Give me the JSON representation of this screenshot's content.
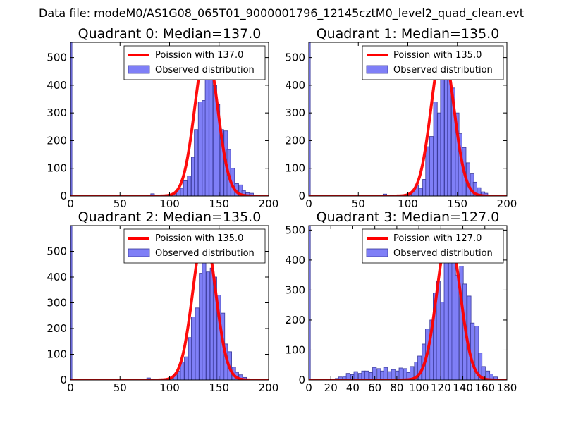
{
  "figure": {
    "suptitle": "Data file: modeM0/AS1G08_065T01_9000001796_12145cztM0_level2_quad_clean.evt",
    "bar_fill": "#7f7ff7",
    "bar_edge": "#3a3a9a",
    "curve_color": "#ff0000"
  },
  "chart_data": [
    {
      "type": "bar",
      "title": "Quadrant 0: Median=137.0",
      "median": 137.0,
      "legend": [
        "Poission with 137.0",
        "Observed distribution"
      ],
      "xlim": [
        0,
        200
      ],
      "ylim": [
        0,
        555
      ],
      "xticks": [
        0,
        50,
        100,
        150,
        200
      ],
      "yticks": [
        0,
        100,
        200,
        300,
        400,
        500
      ],
      "bin_width": 3.7,
      "zero_bin": {
        "x": 0,
        "width": 1.5,
        "value": 555
      },
      "bins": [
        {
          "x": 77,
          "value": 4
        },
        {
          "x": 81,
          "value": 8
        },
        {
          "x": 85,
          "value": 3
        },
        {
          "x": 92,
          "value": 3
        },
        {
          "x": 96,
          "value": 5
        },
        {
          "x": 100,
          "value": 5
        },
        {
          "x": 103,
          "value": 10
        },
        {
          "x": 107,
          "value": 22
        },
        {
          "x": 111,
          "value": 28
        },
        {
          "x": 114,
          "value": 55
        },
        {
          "x": 118,
          "value": 72
        },
        {
          "x": 122,
          "value": 140
        },
        {
          "x": 125,
          "value": 240
        },
        {
          "x": 129,
          "value": 340
        },
        {
          "x": 133,
          "value": 345
        },
        {
          "x": 136,
          "value": 485
        },
        {
          "x": 140,
          "value": 470
        },
        {
          "x": 144,
          "value": 400
        },
        {
          "x": 147,
          "value": 330
        },
        {
          "x": 151,
          "value": 240
        },
        {
          "x": 155,
          "value": 235
        },
        {
          "x": 158,
          "value": 168
        },
        {
          "x": 162,
          "value": 100
        },
        {
          "x": 166,
          "value": 45
        },
        {
          "x": 170,
          "value": 40
        },
        {
          "x": 173,
          "value": 20
        },
        {
          "x": 177,
          "value": 12
        },
        {
          "x": 181,
          "value": 10
        },
        {
          "x": 185,
          "value": 3
        }
      ],
      "curve": {
        "peak": 530,
        "sigma": 11.5
      }
    },
    {
      "type": "bar",
      "title": "Quadrant 1: Median=135.0",
      "median": 135.0,
      "legend": [
        "Poission with 135.0",
        "Observed distribution"
      ],
      "xlim": [
        0,
        200
      ],
      "ylim": [
        0,
        555
      ],
      "xticks": [
        0,
        50,
        100,
        150,
        200
      ],
      "yticks": [
        0,
        100,
        200,
        300,
        400,
        500
      ],
      "bin_width": 3.7,
      "zero_bin": {
        "x": 0,
        "width": 1.5,
        "value": 555
      },
      "bins": [
        {
          "x": 75,
          "value": 7
        },
        {
          "x": 82,
          "value": 3
        },
        {
          "x": 89,
          "value": 4
        },
        {
          "x": 96,
          "value": 5
        },
        {
          "x": 100,
          "value": 10
        },
        {
          "x": 104,
          "value": 18
        },
        {
          "x": 107,
          "value": 40
        },
        {
          "x": 111,
          "value": 28
        },
        {
          "x": 115,
          "value": 60
        },
        {
          "x": 118,
          "value": 178
        },
        {
          "x": 122,
          "value": 215
        },
        {
          "x": 126,
          "value": 340
        },
        {
          "x": 130,
          "value": 300
        },
        {
          "x": 133,
          "value": 440
        },
        {
          "x": 137,
          "value": 510
        },
        {
          "x": 140,
          "value": 440
        },
        {
          "x": 144,
          "value": 390
        },
        {
          "x": 148,
          "value": 300
        },
        {
          "x": 151,
          "value": 225
        },
        {
          "x": 155,
          "value": 175
        },
        {
          "x": 159,
          "value": 120
        },
        {
          "x": 163,
          "value": 80
        },
        {
          "x": 166,
          "value": 50
        },
        {
          "x": 170,
          "value": 30
        },
        {
          "x": 174,
          "value": 15
        },
        {
          "x": 177,
          "value": 10
        }
      ],
      "curve": {
        "peak": 530,
        "sigma": 11.5
      }
    },
    {
      "type": "bar",
      "title": "Quadrant 2: Median=135.0",
      "median": 135.0,
      "legend": [
        "Poission with 135.0",
        "Observed distribution"
      ],
      "xlim": [
        0,
        200
      ],
      "ylim": [
        0,
        600
      ],
      "xticks": [
        0,
        50,
        100,
        150,
        200
      ],
      "yticks": [
        0,
        100,
        200,
        300,
        400,
        500
      ],
      "bin_width": 3.7,
      "zero_bin": {
        "x": 0,
        "width": 1.5,
        "value": 600
      },
      "bins": [
        {
          "x": 77,
          "value": 8
        },
        {
          "x": 81,
          "value": 4
        },
        {
          "x": 92,
          "value": 3
        },
        {
          "x": 96,
          "value": 5
        },
        {
          "x": 100,
          "value": 8
        },
        {
          "x": 104,
          "value": 20
        },
        {
          "x": 108,
          "value": 35
        },
        {
          "x": 111,
          "value": 70
        },
        {
          "x": 115,
          "value": 90
        },
        {
          "x": 119,
          "value": 165
        },
        {
          "x": 122,
          "value": 245
        },
        {
          "x": 126,
          "value": 280
        },
        {
          "x": 130,
          "value": 415
        },
        {
          "x": 133,
          "value": 535
        },
        {
          "x": 137,
          "value": 420
        },
        {
          "x": 141,
          "value": 435
        },
        {
          "x": 144,
          "value": 400
        },
        {
          "x": 148,
          "value": 330
        },
        {
          "x": 152,
          "value": 260
        },
        {
          "x": 155,
          "value": 140
        },
        {
          "x": 159,
          "value": 110
        },
        {
          "x": 163,
          "value": 50
        },
        {
          "x": 166,
          "value": 30
        },
        {
          "x": 170,
          "value": 20
        },
        {
          "x": 174,
          "value": 10
        }
      ],
      "curve": {
        "peak": 570,
        "sigma": 11.5
      }
    },
    {
      "type": "bar",
      "title": "Quadrant 3: Median=127.0",
      "median": 127.0,
      "legend": [
        "Poission with 127.0",
        "Observed distribution"
      ],
      "xlim": [
        0,
        180
      ],
      "ylim": [
        0,
        515
      ],
      "xticks": [
        0,
        20,
        40,
        60,
        80,
        100,
        120,
        140,
        160,
        180
      ],
      "yticks": [
        0,
        100,
        200,
        300,
        400,
        500
      ],
      "bin_width": 3.4,
      "zero_bin": {
        "x": 0,
        "width": 1.4,
        "value": 515
      },
      "bins": [
        {
          "x": 24,
          "value": 5
        },
        {
          "x": 27,
          "value": 10
        },
        {
          "x": 31,
          "value": 12
        },
        {
          "x": 34,
          "value": 22
        },
        {
          "x": 38,
          "value": 18
        },
        {
          "x": 41,
          "value": 28
        },
        {
          "x": 45,
          "value": 22
        },
        {
          "x": 48,
          "value": 30
        },
        {
          "x": 51,
          "value": 30
        },
        {
          "x": 55,
          "value": 25
        },
        {
          "x": 58,
          "value": 42
        },
        {
          "x": 62,
          "value": 38
        },
        {
          "x": 65,
          "value": 30
        },
        {
          "x": 68,
          "value": 42
        },
        {
          "x": 72,
          "value": 28
        },
        {
          "x": 75,
          "value": 35
        },
        {
          "x": 79,
          "value": 30
        },
        {
          "x": 82,
          "value": 40
        },
        {
          "x": 86,
          "value": 38
        },
        {
          "x": 89,
          "value": 25
        },
        {
          "x": 92,
          "value": 45
        },
        {
          "x": 96,
          "value": 60
        },
        {
          "x": 99,
          "value": 80
        },
        {
          "x": 103,
          "value": 120
        },
        {
          "x": 106,
          "value": 170
        },
        {
          "x": 110,
          "value": 200
        },
        {
          "x": 113,
          "value": 290
        },
        {
          "x": 116,
          "value": 330
        },
        {
          "x": 120,
          "value": 260
        },
        {
          "x": 123,
          "value": 430
        },
        {
          "x": 127,
          "value": 400
        },
        {
          "x": 130,
          "value": 490
        },
        {
          "x": 133,
          "value": 350
        },
        {
          "x": 137,
          "value": 380
        },
        {
          "x": 140,
          "value": 320
        },
        {
          "x": 144,
          "value": 280
        },
        {
          "x": 147,
          "value": 190
        },
        {
          "x": 151,
          "value": 180
        },
        {
          "x": 154,
          "value": 90
        },
        {
          "x": 157,
          "value": 45
        },
        {
          "x": 161,
          "value": 30
        },
        {
          "x": 164,
          "value": 20
        },
        {
          "x": 168,
          "value": 10
        }
      ],
      "curve": {
        "peak": 490,
        "sigma": 10.5
      }
    }
  ]
}
